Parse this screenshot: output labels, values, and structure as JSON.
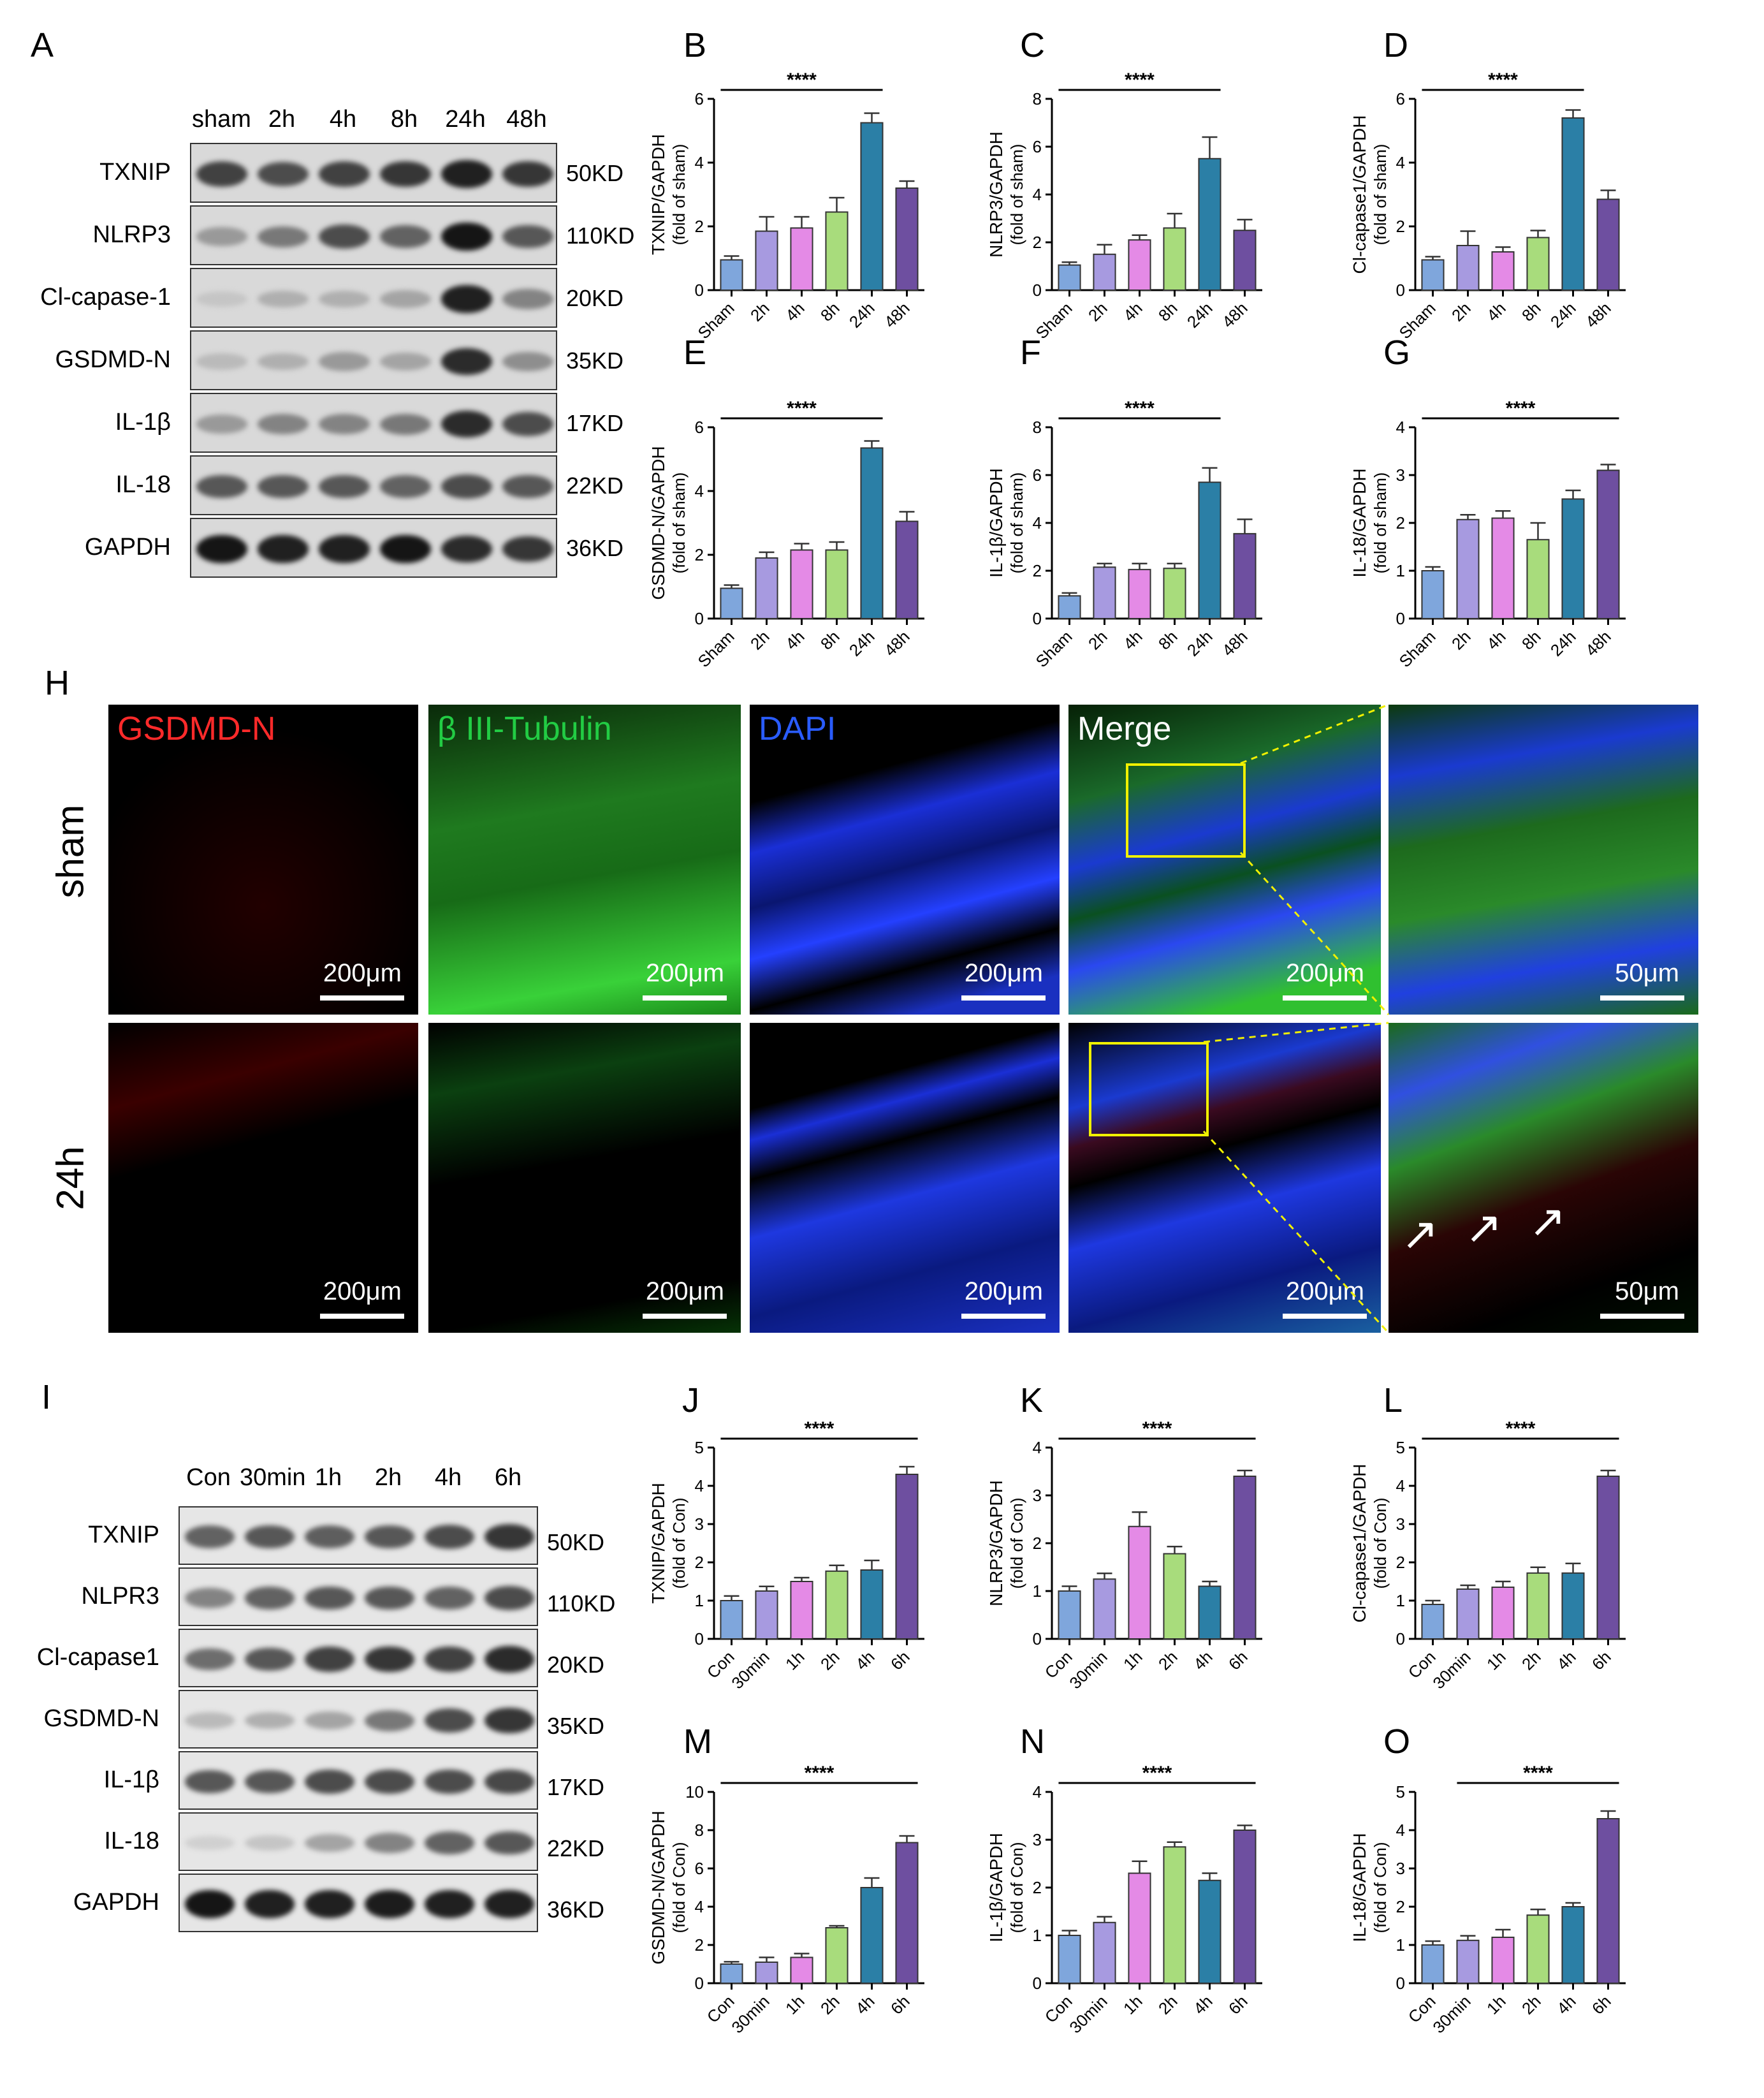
{
  "panels_top": [
    "A",
    "B",
    "C",
    "D",
    "E",
    "F",
    "G"
  ],
  "panel_H": "H",
  "panels_bottom": [
    "I",
    "J",
    "K",
    "L",
    "M",
    "N",
    "O"
  ],
  "blotA": {
    "headers": [
      "sham",
      "2h",
      "4h",
      "8h",
      "24h",
      "48h"
    ],
    "rows": [
      {
        "label": "TXNIP",
        "kd": "50KD",
        "intensity": [
          0.75,
          0.7,
          0.75,
          0.8,
          0.9,
          0.8
        ]
      },
      {
        "label": "NLRP3",
        "kd": "110KD",
        "intensity": [
          0.35,
          0.5,
          0.7,
          0.6,
          0.95,
          0.65
        ]
      },
      {
        "label": "Cl-capase-1",
        "kd": "20KD",
        "intensity": [
          0.15,
          0.25,
          0.25,
          0.3,
          0.9,
          0.45
        ]
      },
      {
        "label": "GSDMD-N",
        "kd": "35KD",
        "intensity": [
          0.2,
          0.25,
          0.35,
          0.3,
          0.85,
          0.4
        ]
      },
      {
        "label": "IL-1β",
        "kd": "17KD",
        "intensity": [
          0.35,
          0.45,
          0.45,
          0.5,
          0.85,
          0.7
        ]
      },
      {
        "label": "IL-18",
        "kd": "22KD",
        "intensity": [
          0.65,
          0.65,
          0.65,
          0.6,
          0.7,
          0.65
        ]
      },
      {
        "label": "GAPDH",
        "kd": "36KD",
        "intensity": [
          0.95,
          0.9,
          0.9,
          0.95,
          0.85,
          0.8
        ]
      }
    ]
  },
  "blotI": {
    "headers": [
      "Con",
      "30min",
      "1h",
      "2h",
      "4h",
      "6h"
    ],
    "rows": [
      {
        "label": "TXNIP",
        "kd": "50KD",
        "intensity": [
          0.6,
          0.65,
          0.62,
          0.65,
          0.7,
          0.8
        ]
      },
      {
        "label": "NLPR3",
        "kd": "110KD",
        "intensity": [
          0.45,
          0.6,
          0.65,
          0.65,
          0.6,
          0.7
        ]
      },
      {
        "label": "Cl-capase1",
        "kd": "20KD",
        "intensity": [
          0.55,
          0.65,
          0.75,
          0.8,
          0.75,
          0.85
        ]
      },
      {
        "label": "GSDMD-N",
        "kd": "35KD",
        "intensity": [
          0.2,
          0.25,
          0.3,
          0.5,
          0.7,
          0.8
        ]
      },
      {
        "label": "IL-1β",
        "kd": "17KD",
        "intensity": [
          0.65,
          0.65,
          0.7,
          0.7,
          0.7,
          0.72
        ]
      },
      {
        "label": "IL-18",
        "kd": "22KD",
        "intensity": [
          0.1,
          0.15,
          0.3,
          0.45,
          0.6,
          0.65
        ]
      },
      {
        "label": "GAPDH",
        "kd": "36KD",
        "intensity": [
          0.95,
          0.9,
          0.9,
          0.92,
          0.9,
          0.9
        ]
      }
    ]
  },
  "colors": [
    "#7fa6dc",
    "#a79ae0",
    "#e48ae6",
    "#a8dc7c",
    "#2b7fa6",
    "#6e4fa0"
  ],
  "stars": "****",
  "chart_data": [
    {
      "type": "bar",
      "panel": "B",
      "categories": [
        "Sham",
        "2h",
        "4h",
        "8h",
        "24h",
        "48h"
      ],
      "values": [
        0.95,
        1.85,
        1.95,
        2.45,
        5.25,
        3.2
      ],
      "errors": [
        0.12,
        0.45,
        0.35,
        0.45,
        0.3,
        0.22
      ],
      "ylabel": "TXNIP/GAPDH",
      "ylabel2": "(fold of sham)",
      "ylim": [
        0,
        6
      ],
      "ticks": [
        0,
        2,
        4,
        6
      ],
      "sig_span": [
        0,
        4
      ]
    },
    {
      "type": "bar",
      "panel": "C",
      "categories": [
        "Sham",
        "2h",
        "4h",
        "8h",
        "24h",
        "48h"
      ],
      "values": [
        1.05,
        1.5,
        2.1,
        2.6,
        5.5,
        2.5
      ],
      "errors": [
        0.12,
        0.4,
        0.2,
        0.6,
        0.9,
        0.45
      ],
      "ylabel": "NLRP3/GAPDH",
      "ylabel2": "(fold of sham)",
      "ylim": [
        0,
        8
      ],
      "ticks": [
        0,
        2,
        4,
        6,
        8
      ],
      "sig_span": [
        0,
        4
      ]
    },
    {
      "type": "bar",
      "panel": "D",
      "categories": [
        "Sham",
        "2h",
        "4h",
        "8h",
        "24h",
        "48h"
      ],
      "values": [
        0.95,
        1.4,
        1.2,
        1.65,
        5.4,
        2.85
      ],
      "errors": [
        0.1,
        0.45,
        0.15,
        0.22,
        0.25,
        0.28
      ],
      "ylabel": "Cl-capase1/GAPDH",
      "ylabel2": "(fold of sham)",
      "ylim": [
        0,
        6
      ],
      "ticks": [
        0,
        2,
        4,
        6
      ],
      "sig_span": [
        0,
        4
      ]
    },
    {
      "type": "bar",
      "panel": "E",
      "categories": [
        "Sham",
        "2h",
        "4h",
        "8h",
        "24h",
        "48h"
      ],
      "values": [
        0.95,
        1.9,
        2.15,
        2.15,
        5.35,
        3.05
      ],
      "errors": [
        0.1,
        0.18,
        0.2,
        0.25,
        0.22,
        0.3
      ],
      "ylabel": "GSDMD-N/GAPDH",
      "ylabel2": "(fold of sham)",
      "ylim": [
        0,
        6
      ],
      "ticks": [
        0,
        2,
        4,
        6
      ],
      "sig_span": [
        0,
        4
      ]
    },
    {
      "type": "bar",
      "panel": "F",
      "categories": [
        "Sham",
        "2h",
        "4h",
        "8h",
        "24h",
        "48h"
      ],
      "values": [
        0.95,
        2.15,
        2.05,
        2.1,
        5.7,
        3.55
      ],
      "errors": [
        0.12,
        0.15,
        0.25,
        0.2,
        0.6,
        0.6
      ],
      "ylabel": "IL-1β/GAPDH",
      "ylabel2": "(fold of sham)",
      "ylim": [
        0,
        8
      ],
      "ticks": [
        0,
        2,
        4,
        6,
        8
      ],
      "sig_span": [
        0,
        4
      ]
    },
    {
      "type": "bar",
      "panel": "G",
      "categories": [
        "Sham",
        "2h",
        "4h",
        "8h",
        "24h",
        "48h"
      ],
      "values": [
        1.0,
        2.07,
        2.1,
        1.65,
        2.5,
        3.1
      ],
      "errors": [
        0.08,
        0.1,
        0.15,
        0.35,
        0.18,
        0.12
      ],
      "ylabel": "IL-18/GAPDH",
      "ylabel2": "(fold of sham)",
      "ylim": [
        0,
        4
      ],
      "ticks": [
        0,
        1,
        2,
        3,
        4
      ],
      "sig_span": [
        0,
        5
      ]
    },
    {
      "type": "bar",
      "panel": "J",
      "categories": [
        "Con",
        "30min",
        "1h",
        "2h",
        "4h",
        "6h"
      ],
      "values": [
        1.0,
        1.25,
        1.5,
        1.77,
        1.8,
        4.3
      ],
      "errors": [
        0.12,
        0.12,
        0.1,
        0.15,
        0.25,
        0.2
      ],
      "ylabel": "TXNIP/GAPDH",
      "ylabel2": "(fold of Con)",
      "ylim": [
        0,
        5
      ],
      "ticks": [
        0,
        1,
        2,
        3,
        4,
        5
      ],
      "sig_span": [
        0,
        5
      ]
    },
    {
      "type": "bar",
      "panel": "K",
      "categories": [
        "Con",
        "30min",
        "1h",
        "2h",
        "4h",
        "6h"
      ],
      "values": [
        1.0,
        1.25,
        2.35,
        1.78,
        1.1,
        3.4
      ],
      "errors": [
        0.1,
        0.12,
        0.3,
        0.15,
        0.1,
        0.12
      ],
      "ylabel": "NLRP3/GAPDH",
      "ylabel2": "(fold of Con)",
      "ylim": [
        0,
        4
      ],
      "ticks": [
        0,
        1,
        2,
        3,
        4
      ],
      "sig_span": [
        0,
        5
      ]
    },
    {
      "type": "bar",
      "panel": "L",
      "categories": [
        "Con",
        "30min",
        "1h",
        "2h",
        "4h",
        "6h"
      ],
      "values": [
        0.9,
        1.3,
        1.35,
        1.72,
        1.72,
        4.25
      ],
      "errors": [
        0.1,
        0.1,
        0.15,
        0.15,
        0.25,
        0.15
      ],
      "ylabel": "Cl-capase1/GAPDH",
      "ylabel2": "(fold of Con)",
      "ylim": [
        0,
        5
      ],
      "ticks": [
        0,
        1,
        2,
        3,
        4,
        5
      ],
      "sig_span": [
        0,
        5
      ]
    },
    {
      "type": "bar",
      "panel": "M",
      "categories": [
        "Con",
        "30min",
        "1h",
        "2h",
        "4h",
        "6h"
      ],
      "values": [
        1.0,
        1.1,
        1.35,
        2.9,
        5.0,
        7.35
      ],
      "errors": [
        0.12,
        0.25,
        0.2,
        0.1,
        0.5,
        0.35
      ],
      "ylabel": "GSDMD-N/GAPDH",
      "ylabel2": "(fold of Con)",
      "ylim": [
        0,
        10
      ],
      "ticks": [
        0,
        2,
        4,
        6,
        8,
        10
      ],
      "sig_span": [
        0,
        5
      ]
    },
    {
      "type": "bar",
      "panel": "N",
      "categories": [
        "Con",
        "30min",
        "1h",
        "2h",
        "4h",
        "6h"
      ],
      "values": [
        1.0,
        1.27,
        2.3,
        2.85,
        2.15,
        3.2
      ],
      "errors": [
        0.1,
        0.12,
        0.25,
        0.1,
        0.15,
        0.1
      ],
      "ylabel": "IL-1β/GAPDH",
      "ylabel2": "(fold of Con)",
      "ylim": [
        0,
        4
      ],
      "ticks": [
        0,
        1,
        2,
        3,
        4
      ],
      "sig_span": [
        0,
        5
      ]
    },
    {
      "type": "bar",
      "panel": "O",
      "categories": [
        "Con",
        "30min",
        "1h",
        "2h",
        "4h",
        "6h"
      ],
      "values": [
        1.0,
        1.12,
        1.2,
        1.78,
        2.0,
        4.3
      ],
      "errors": [
        0.1,
        0.12,
        0.2,
        0.15,
        0.1,
        0.2
      ],
      "ylabel": "IL-18/GAPDH",
      "ylabel2": "(fold of Con)",
      "ylim": [
        0,
        5
      ],
      "ticks": [
        0,
        1,
        2,
        3,
        4,
        5
      ],
      "sig_span": [
        1,
        5
      ]
    }
  ],
  "micro": {
    "channels": [
      {
        "label": "GSDMD-N",
        "color": "#ff2a2a"
      },
      {
        "label": "β III-Tubulin",
        "color": "#22cc44"
      },
      {
        "label": "DAPI",
        "color": "#2a5cff"
      },
      {
        "label": "Merge",
        "color": "#ffffff"
      }
    ],
    "rows": [
      "sham",
      "24h"
    ],
    "scale_big": "200μm",
    "scale_small": "50μm"
  }
}
